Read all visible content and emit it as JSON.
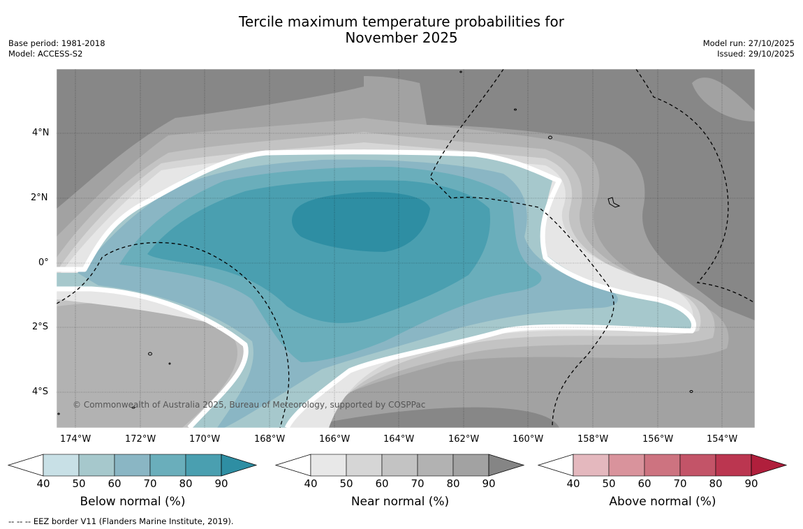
{
  "title_line1": "Tercile maximum temperature probabilities for",
  "title_line2": "November 2025",
  "base_period": "Base period: 1981-2018",
  "model": "Model: ACCESS-S2",
  "model_run": "Model run: 27/10/2025",
  "issued": "Issued: 29/10/2025",
  "copyright": "© Commonwealth of Australia 2025, Bureau of Meteorology, supported by COSPPac",
  "footnote": "--  --  -- EEZ border V11 (Flanders Marine Institute, 2019).",
  "lon_labels": [
    "174°W",
    "172°W",
    "170°W",
    "168°W",
    "166°W",
    "164°W",
    "162°W",
    "160°W",
    "158°W",
    "156°W",
    "154°W"
  ],
  "lat_labels": [
    "4°N",
    "2°N",
    "0°",
    "2°S",
    "4°S"
  ],
  "colorbars": [
    {
      "title": "Below normal (%)",
      "ticks": [
        "40",
        "50",
        "60",
        "70",
        "80",
        "90"
      ],
      "colors": [
        "#ffffff",
        "#c8e0e6",
        "#a6c8cc",
        "#8ab6c4",
        "#6aaebb",
        "#4a9fb0",
        "#2e8ea3"
      ]
    },
    {
      "title": "Near normal (%)",
      "ticks": [
        "40",
        "50",
        "60",
        "70",
        "80",
        "90"
      ],
      "colors": [
        "#ffffff",
        "#e8e8e8",
        "#d6d6d6",
        "#c3c3c3",
        "#b2b2b2",
        "#a2a2a2",
        "#858585"
      ]
    },
    {
      "title": "Above normal (%)",
      "ticks": [
        "40",
        "50",
        "60",
        "70",
        "80",
        "90"
      ],
      "colors": [
        "#ffffff",
        "#e4b8be",
        "#d9939c",
        "#cd7380",
        "#c35468",
        "#bb3650",
        "#b01f3c"
      ]
    }
  ]
}
